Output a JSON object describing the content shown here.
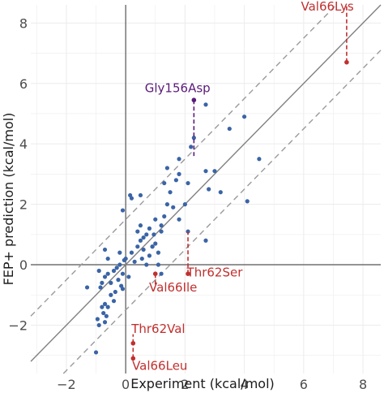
{
  "chart_data": {
    "type": "scatter",
    "xlabel": "Experiment (kcal/mol)",
    "ylabel": "FEP+ prediction (kcal/mol)",
    "xlim": [
      -3.2,
      8.6
    ],
    "ylim": [
      -3.6,
      8.6
    ],
    "xticks": [
      -2,
      0,
      2,
      4,
      6,
      8
    ],
    "yticks": [
      -2,
      0,
      2,
      4,
      6,
      8
    ],
    "grid": true,
    "reference_lines": {
      "identity_slope": 1,
      "band_offset": 1.5,
      "zero_axes": true
    },
    "colors": {
      "points": "#3a64a6",
      "annot_red": "#c0302f",
      "annot_purple": "#5a1a7a",
      "identity": "#808080",
      "band": "#9a9a9a",
      "zero": "#555555",
      "grid": "#ececec"
    },
    "points": [
      [
        -0.85,
        -0.75
      ],
      [
        -0.8,
        -0.6
      ],
      [
        -0.7,
        -0.4
      ],
      [
        -0.6,
        -0.3
      ],
      [
        -0.9,
        -0.2
      ],
      [
        -0.5,
        -0.6
      ],
      [
        -0.4,
        -0.2
      ],
      [
        -0.3,
        -0.1
      ],
      [
        -0.2,
        0.0
      ],
      [
        -0.1,
        -0.3
      ],
      [
        0.0,
        0.2
      ],
      [
        0.1,
        -0.4
      ],
      [
        0.2,
        0.4
      ],
      [
        0.3,
        0.1
      ],
      [
        0.4,
        0.6
      ],
      [
        0.5,
        0.8
      ],
      [
        0.55,
        0.2
      ],
      [
        0.6,
        0.5
      ],
      [
        0.7,
        0.0
      ],
      [
        0.8,
        0.3
      ],
      [
        0.9,
        0.6
      ],
      [
        0.95,
        1.0
      ],
      [
        1.0,
        0.7
      ],
      [
        1.1,
        0.4
      ],
      [
        1.2,
        1.3
      ],
      [
        1.3,
        1.6
      ],
      [
        1.4,
        2.0
      ],
      [
        1.5,
        2.4
      ],
      [
        1.6,
        1.9
      ],
      [
        1.7,
        2.8
      ],
      [
        1.8,
        3.0
      ],
      [
        1.4,
        3.2
      ],
      [
        1.3,
        2.7
      ],
      [
        1.2,
        1.1
      ],
      [
        1.0,
        1.5
      ],
      [
        0.8,
        1.2
      ],
      [
        0.7,
        1.0
      ],
      [
        0.6,
        0.9
      ],
      [
        0.4,
        1.1
      ],
      [
        0.5,
        1.3
      ],
      [
        0.2,
        2.2
      ],
      [
        0.15,
        2.3
      ],
      [
        -0.1,
        1.8
      ],
      [
        0.5,
        2.3
      ],
      [
        1.8,
        3.5
      ],
      [
        1.8,
        1.5
      ],
      [
        2.0,
        2.0
      ],
      [
        2.1,
        1.1
      ],
      [
        2.1,
        2.7
      ],
      [
        2.2,
        3.9
      ],
      [
        2.3,
        4.2
      ],
      [
        2.7,
        3.1
      ],
      [
        2.7,
        5.3
      ],
      [
        2.8,
        2.5
      ],
      [
        3.0,
        3.1
      ],
      [
        3.2,
        2.4
      ],
      [
        3.5,
        4.5
      ],
      [
        4.0,
        4.9
      ],
      [
        4.1,
        2.1
      ],
      [
        4.5,
        3.5
      ],
      [
        2.7,
        0.8
      ],
      [
        0.9,
        0.6
      ],
      [
        1.1,
        0.0
      ],
      [
        1.2,
        -0.3
      ],
      [
        -0.7,
        -1.3
      ],
      [
        -0.8,
        -1.4
      ],
      [
        -0.75,
        -1.6
      ],
      [
        -0.65,
        -1.7
      ],
      [
        -0.6,
        -1.4
      ],
      [
        -0.7,
        -1.9
      ],
      [
        -0.9,
        -2.0
      ],
      [
        -0.5,
        -1.0
      ],
      [
        -0.4,
        -1.2
      ],
      [
        -0.35,
        -0.9
      ],
      [
        -0.25,
        -0.5
      ],
      [
        -0.15,
        -0.7
      ],
      [
        -0.1,
        -0.8
      ],
      [
        -1.3,
        -0.75
      ],
      [
        -1.0,
        -2.9
      ],
      [
        -0.7,
        0.5
      ],
      [
        -0.6,
        0.2
      ],
      [
        -0.2,
        0.4
      ],
      [
        -0.05,
        0.15
      ],
      [
        -0.95,
        -1.8
      ]
    ],
    "annotations": [
      {
        "label": "Val66Lys",
        "x": 7.45,
        "y": 6.7,
        "y_end": 8.6,
        "color": "red",
        "label_x": 6.8,
        "label_y": 8.55
      },
      {
        "label": "Gly156Asp",
        "x": 2.3,
        "y": 5.45,
        "y_end": 3.6,
        "color": "purple",
        "label_x": 1.75,
        "label_y": 5.85
      },
      {
        "label": "Thr62Ser",
        "x": 2.1,
        "y": -0.3,
        "y_end": 1.1,
        "color": "red",
        "label_x": 3.0,
        "label_y": -0.25
      },
      {
        "label": "Val66Ile",
        "x": 1.0,
        "y": -0.3,
        "y_end": -0.65,
        "color": "red",
        "label_x": 1.6,
        "label_y": -0.75
      },
      {
        "label": "Thr62Val",
        "x": 0.25,
        "y": -2.6,
        "y_end": -2.3,
        "color": "red",
        "label_x": 1.1,
        "label_y": -2.12
      },
      {
        "label": "Val66Leu",
        "x": 0.25,
        "y": -3.1,
        "y_end": -2.7,
        "color": "red",
        "label_x": 1.15,
        "label_y": -3.35
      }
    ]
  }
}
